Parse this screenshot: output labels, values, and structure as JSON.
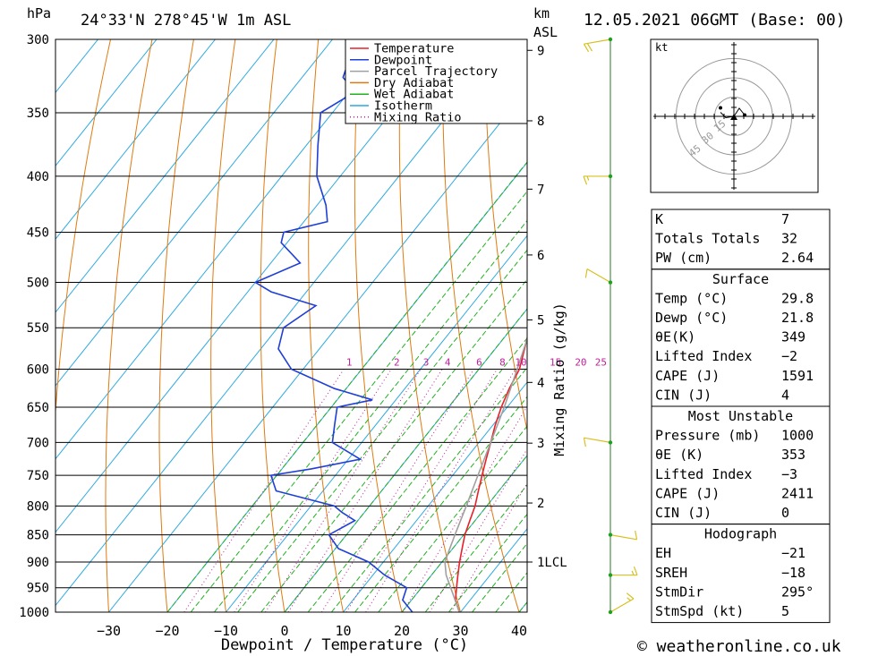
{
  "header": {
    "hpa_label": "hPa",
    "location": "24°33'N  278°45'W  1m  ASL",
    "km_label": "km",
    "asl_label": "ASL",
    "datetime": "12.05.2021  06GMT  (Base: 00)"
  },
  "axis": {
    "xlabel": "Dewpoint / Temperature (°C)",
    "mixing_ratio_label": "Mixing Ratio (g/kg)",
    "lcl_label": "1LCL"
  },
  "footer": {
    "copyright": "© weatheronline.co.uk"
  },
  "legend": [
    {
      "label": "Temperature",
      "color": "#e8202a",
      "style": "solid"
    },
    {
      "label": "Dewpoint",
      "color": "#1f3fd6",
      "style": "solid"
    },
    {
      "label": "Parcel Trajectory",
      "color": "#a0a0a0",
      "style": "solid"
    },
    {
      "label": "Dry Adiabat",
      "color": "#e07a10",
      "style": "solid"
    },
    {
      "label": "Wet Adiabat",
      "color": "#20b020",
      "style": "solid"
    },
    {
      "label": "Isotherm",
      "color": "#2aa8e0",
      "style": "solid"
    },
    {
      "label": "Mixing Ratio",
      "color": "#c0209a",
      "style": "dotted"
    }
  ],
  "hodograph": {
    "unit_label": "kt",
    "ring_labels": [
      "15",
      "30",
      "45"
    ]
  },
  "indices": {
    "top": [
      {
        "label": "K",
        "value": "7"
      },
      {
        "label": "Totals Totals",
        "value": "32"
      },
      {
        "label": "PW (cm)",
        "value": "2.64"
      }
    ],
    "surface": {
      "title": "Surface",
      "rows": [
        {
          "label": "Temp (°C)",
          "value": "29.8"
        },
        {
          "label": "Dewp (°C)",
          "value": "21.8"
        },
        {
          "label": "θE(K)",
          "value": "349"
        },
        {
          "label": "Lifted Index",
          "value": "−2"
        },
        {
          "label": "CAPE (J)",
          "value": "1591"
        },
        {
          "label": "CIN (J)",
          "value": "4"
        }
      ]
    },
    "most_unstable": {
      "title": "Most Unstable",
      "rows": [
        {
          "label": "Pressure (mb)",
          "value": "1000"
        },
        {
          "label": "θE (K)",
          "value": "353"
        },
        {
          "label": "Lifted Index",
          "value": "−3"
        },
        {
          "label": "CAPE (J)",
          "value": "2411"
        },
        {
          "label": "CIN (J)",
          "value": "0"
        }
      ]
    },
    "hodograph_box": {
      "title": "Hodograph",
      "rows": [
        {
          "label": "EH",
          "value": "−21"
        },
        {
          "label": "SREH",
          "value": "−18"
        },
        {
          "label": "StmDir",
          "value": "295°"
        },
        {
          "label": "StmSpd (kt)",
          "value": "5"
        }
      ]
    }
  },
  "chart_data": {
    "type": "line",
    "title": "24°33'N  278°45'W  1m  ASL",
    "xlabel": "Dewpoint / Temperature (°C)",
    "ylabel": "hPa",
    "x_ticks": [
      -30,
      -20,
      -10,
      0,
      10,
      20,
      30,
      40
    ],
    "pressure_levels": [
      300,
      350,
      400,
      450,
      500,
      550,
      600,
      650,
      700,
      750,
      800,
      850,
      900,
      950,
      1000
    ],
    "km_ticks": [
      "9",
      "8",
      "7",
      "6",
      "5",
      "4",
      "3",
      "2",
      "1LCL"
    ],
    "mixing_ratio_labels": [
      "1",
      "2",
      "3",
      "4",
      "6",
      "8",
      "10",
      "15",
      "20",
      "25"
    ],
    "series": [
      {
        "name": "Temperature",
        "points": [
          [
            1000,
            29.8
          ],
          [
            975,
            27.5
          ],
          [
            950,
            26.0
          ],
          [
            925,
            24.5
          ],
          [
            900,
            23.0
          ],
          [
            875,
            21.6
          ],
          [
            850,
            20.2
          ],
          [
            825,
            19.1
          ],
          [
            800,
            18.0
          ],
          [
            775,
            16.5
          ],
          [
            750,
            15.0
          ],
          [
            725,
            13.5
          ],
          [
            700,
            12.0
          ],
          [
            675,
            10.4
          ],
          [
            650,
            9.0
          ],
          [
            625,
            7.8
          ],
          [
            600,
            6.9
          ],
          [
            575,
            5.0
          ],
          [
            550,
            3.0
          ],
          [
            525,
            0.5
          ],
          [
            500,
            -1.2
          ],
          [
            475,
            -2.8
          ],
          [
            450,
            -4.5
          ],
          [
            425,
            -7.5
          ],
          [
            400,
            -9.5
          ],
          [
            375,
            -12.5
          ],
          [
            350,
            -16.0
          ],
          [
            325,
            -21.0
          ],
          [
            300,
            -27.0
          ]
        ]
      },
      {
        "name": "Dewpoint",
        "points": [
          [
            1000,
            21.8
          ],
          [
            975,
            18.5
          ],
          [
            950,
            17.5
          ],
          [
            925,
            12.0
          ],
          [
            900,
            7.5
          ],
          [
            875,
            0.5
          ],
          [
            850,
            -3.0
          ],
          [
            825,
            -0.5
          ],
          [
            810,
            -4.0
          ],
          [
            800,
            -6.0
          ],
          [
            775,
            -18.0
          ],
          [
            750,
            -21.0
          ],
          [
            740,
            -15.0
          ],
          [
            725,
            -8.0
          ],
          [
            700,
            -15.0
          ],
          [
            675,
            -17.0
          ],
          [
            650,
            -19.0
          ],
          [
            640,
            -14.0
          ],
          [
            625,
            -22.0
          ],
          [
            600,
            -32.0
          ],
          [
            575,
            -37.0
          ],
          [
            550,
            -39.0
          ],
          [
            525,
            -36.5
          ],
          [
            510,
            -46.0
          ],
          [
            500,
            -50.0
          ],
          [
            480,
            -45.0
          ],
          [
            460,
            -51.0
          ],
          [
            450,
            -52.0
          ],
          [
            440,
            -46.0
          ],
          [
            425,
            -48.5
          ],
          [
            400,
            -54.0
          ],
          [
            375,
            -58.0
          ],
          [
            350,
            -62.0
          ],
          [
            335,
            -59.0
          ],
          [
            325,
            -63.0
          ],
          [
            300,
            -66.0
          ]
        ]
      },
      {
        "name": "Parcel Trajectory",
        "points": [
          [
            1000,
            29.8
          ],
          [
            950,
            25.0
          ],
          [
            925,
            22.5
          ],
          [
            900,
            20.5
          ],
          [
            875,
            19.5
          ],
          [
            850,
            18.5
          ],
          [
            800,
            16.5
          ],
          [
            750,
            14.3
          ],
          [
            700,
            12.0
          ],
          [
            650,
            9.5
          ],
          [
            600,
            6.5
          ],
          [
            550,
            3.2
          ],
          [
            500,
            -0.8
          ],
          [
            450,
            -5.5
          ],
          [
            400,
            -11.5
          ],
          [
            370,
            -16.0
          ]
        ]
      }
    ],
    "wind_barbs": [
      {
        "pressure": 300,
        "dir_deg": 260,
        "speed_kt": 20
      },
      {
        "pressure": 400,
        "dir_deg": 270,
        "speed_kt": 15
      },
      {
        "pressure": 500,
        "dir_deg": 300,
        "speed_kt": 10
      },
      {
        "pressure": 700,
        "dir_deg": 280,
        "speed_kt": 10
      },
      {
        "pressure": 850,
        "dir_deg": 100,
        "speed_kt": 10
      },
      {
        "pressure": 925,
        "dir_deg": 90,
        "speed_kt": 15
      },
      {
        "pressure": 1000,
        "dir_deg": 60,
        "speed_kt": 15
      }
    ],
    "hodograph_points": [
      [
        -5,
        1.5
      ],
      [
        -3,
        -0.5
      ],
      [
        0,
        0
      ],
      [
        2,
        3
      ],
      [
        4,
        0.5
      ]
    ],
    "grid": true,
    "legend_position": "top-right"
  }
}
